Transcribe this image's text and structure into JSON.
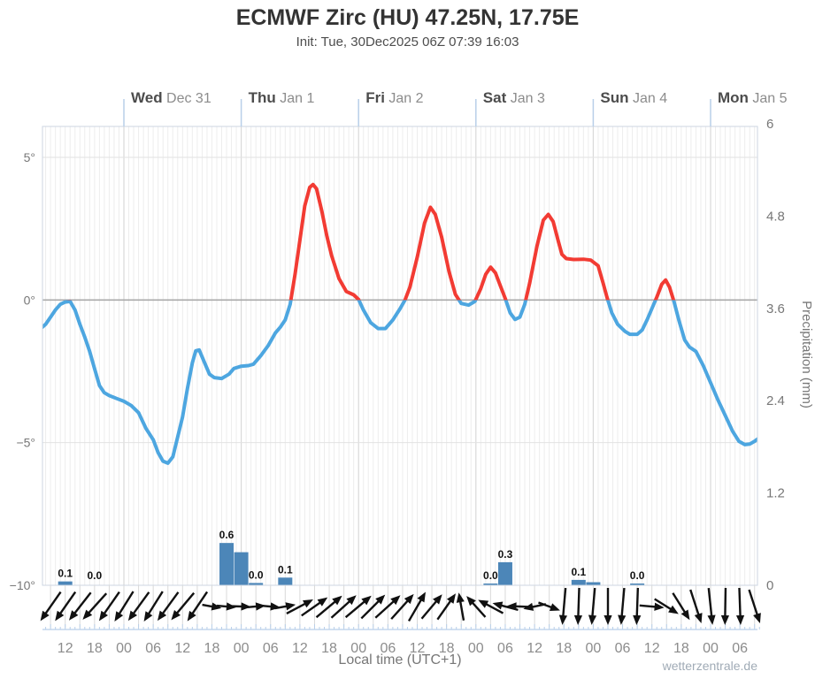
{
  "header": {
    "title": "ECMWF Zirc (HU) 47.25N, 17.75E",
    "subtitle": "Init: Tue, 30Dec2025 06Z 07:39 16:03"
  },
  "watermark": "wetterzentrale.de",
  "chart_data": {
    "type": "line",
    "title": "ECMWF Zirc (HU) 47.25N, 17.75E",
    "x_axis": {
      "label": "Local time (UTC+1)",
      "hours_range": [
        7,
        154.1
      ],
      "day_ticks": [
        {
          "t": 24,
          "day": "Wed",
          "date": "Dec 31"
        },
        {
          "t": 48,
          "day": "Thu",
          "date": "Jan 1"
        },
        {
          "t": 72,
          "day": "Fri",
          "date": "Jan 2"
        },
        {
          "t": 96,
          "day": "Sat",
          "date": "Jan 3"
        },
        {
          "t": 120,
          "day": "Sun",
          "date": "Jan 4"
        },
        {
          "t": 144,
          "day": "Mon",
          "date": "Jan 5"
        }
      ],
      "time_ticks": [
        {
          "t": 12,
          "label": "12"
        },
        {
          "t": 18,
          "label": "18"
        },
        {
          "t": 24,
          "label": "00"
        },
        {
          "t": 30,
          "label": "06"
        },
        {
          "t": 36,
          "label": "12"
        },
        {
          "t": 42,
          "label": "18"
        },
        {
          "t": 48,
          "label": "00"
        },
        {
          "t": 54,
          "label": "06"
        },
        {
          "t": 60,
          "label": "12"
        },
        {
          "t": 66,
          "label": "18"
        },
        {
          "t": 72,
          "label": "00"
        },
        {
          "t": 78,
          "label": "06"
        },
        {
          "t": 84,
          "label": "12"
        },
        {
          "t": 90,
          "label": "18"
        },
        {
          "t": 96,
          "label": "00"
        },
        {
          "t": 102,
          "label": "06"
        },
        {
          "t": 108,
          "label": "12"
        },
        {
          "t": 114,
          "label": "18"
        },
        {
          "t": 120,
          "label": "00"
        },
        {
          "t": 126,
          "label": "06"
        },
        {
          "t": 132,
          "label": "12"
        },
        {
          "t": 138,
          "label": "18"
        },
        {
          "t": 144,
          "label": "00"
        },
        {
          "t": 150,
          "label": "06"
        }
      ]
    },
    "y_left": {
      "unit": "°C",
      "range": [
        -10,
        6.2
      ],
      "ticks": [
        {
          "v": 5,
          "label": "5°"
        },
        {
          "v": 0,
          "label": "0°"
        },
        {
          "v": -5,
          "label": "−5°"
        },
        {
          "v": -10,
          "label": "−10°"
        }
      ]
    },
    "y_right": {
      "label": "Precipitation (mm)",
      "range": [
        0,
        6
      ],
      "ticks": [
        {
          "v": 0,
          "label": "0"
        },
        {
          "v": 1.2,
          "label": "1.2"
        },
        {
          "v": 2.4,
          "label": "2.4"
        },
        {
          "v": 3.6,
          "label": "3.6"
        },
        {
          "v": 4.8,
          "label": "4.8"
        },
        {
          "v": 6,
          "label": "6"
        }
      ]
    },
    "temperature": {
      "unit": "°C",
      "color_above_zero": "#f23b33",
      "color_below_zero": "#4da6e0",
      "points": [
        [
          7,
          -1.0
        ],
        [
          8,
          -0.85
        ],
        [
          9,
          -0.6
        ],
        [
          10,
          -0.35
        ],
        [
          11,
          -0.15
        ],
        [
          12,
          -0.07
        ],
        [
          13,
          -0.05
        ],
        [
          14,
          -0.35
        ],
        [
          15,
          -0.85
        ],
        [
          16,
          -1.3
        ],
        [
          17,
          -1.8
        ],
        [
          18,
          -2.4
        ],
        [
          19,
          -3.0
        ],
        [
          20,
          -3.25
        ],
        [
          21,
          -3.35
        ],
        [
          22.5,
          -3.45
        ],
        [
          24,
          -3.55
        ],
        [
          25.5,
          -3.7
        ],
        [
          27,
          -3.95
        ],
        [
          28.5,
          -4.5
        ],
        [
          30,
          -4.9
        ],
        [
          31,
          -5.35
        ],
        [
          32,
          -5.65
        ],
        [
          33,
          -5.72
        ],
        [
          34,
          -5.5
        ],
        [
          35,
          -4.8
        ],
        [
          36,
          -4.1
        ],
        [
          37,
          -3.1
        ],
        [
          38,
          -2.2
        ],
        [
          38.7,
          -1.78
        ],
        [
          39.4,
          -1.75
        ],
        [
          40.5,
          -2.2
        ],
        [
          41.5,
          -2.6
        ],
        [
          42.5,
          -2.72
        ],
        [
          44,
          -2.75
        ],
        [
          45.5,
          -2.6
        ],
        [
          46.5,
          -2.4
        ],
        [
          48,
          -2.32
        ],
        [
          49.5,
          -2.3
        ],
        [
          50.5,
          -2.25
        ],
        [
          52,
          -1.95
        ],
        [
          53.5,
          -1.6
        ],
        [
          55,
          -1.15
        ],
        [
          56,
          -0.95
        ],
        [
          57,
          -0.7
        ],
        [
          58,
          -0.15
        ],
        [
          59,
          0.9
        ],
        [
          60,
          2.1
        ],
        [
          61,
          3.3
        ],
        [
          62,
          3.95
        ],
        [
          62.7,
          4.05
        ],
        [
          63.4,
          3.9
        ],
        [
          64.5,
          3.1
        ],
        [
          65.5,
          2.25
        ],
        [
          66.5,
          1.55
        ],
        [
          68,
          0.75
        ],
        [
          69.5,
          0.3
        ],
        [
          71,
          0.18
        ],
        [
          72,
          0.02
        ],
        [
          73,
          -0.35
        ],
        [
          74.5,
          -0.8
        ],
        [
          76,
          -1.0
        ],
        [
          77.5,
          -1.0
        ],
        [
          79,
          -0.7
        ],
        [
          80.5,
          -0.3
        ],
        [
          81.5,
          0.0
        ],
        [
          82.5,
          0.45
        ],
        [
          84,
          1.5
        ],
        [
          85.5,
          2.7
        ],
        [
          86.7,
          3.25
        ],
        [
          87.7,
          3.0
        ],
        [
          89,
          2.2
        ],
        [
          90.5,
          1.0
        ],
        [
          91.8,
          0.2
        ],
        [
          93,
          -0.12
        ],
        [
          94.5,
          -0.18
        ],
        [
          95.8,
          -0.05
        ],
        [
          97,
          0.4
        ],
        [
          98,
          0.9
        ],
        [
          99,
          1.15
        ],
        [
          100,
          0.95
        ],
        [
          101,
          0.5
        ],
        [
          102,
          0.05
        ],
        [
          103,
          -0.45
        ],
        [
          104,
          -0.68
        ],
        [
          105,
          -0.6
        ],
        [
          106,
          -0.15
        ],
        [
          107,
          0.6
        ],
        [
          108.5,
          1.9
        ],
        [
          109.8,
          2.8
        ],
        [
          110.8,
          3.0
        ],
        [
          111.8,
          2.75
        ],
        [
          112.8,
          2.1
        ],
        [
          113.6,
          1.6
        ],
        [
          114.5,
          1.45
        ],
        [
          116,
          1.42
        ],
        [
          118,
          1.43
        ],
        [
          119.5,
          1.4
        ],
        [
          121,
          1.2
        ],
        [
          122,
          0.6
        ],
        [
          122.8,
          0.1
        ],
        [
          123.8,
          -0.45
        ],
        [
          125,
          -0.85
        ],
        [
          126.5,
          -1.1
        ],
        [
          127.5,
          -1.2
        ],
        [
          129,
          -1.2
        ],
        [
          130,
          -1.05
        ],
        [
          131,
          -0.7
        ],
        [
          132,
          -0.3
        ],
        [
          133,
          0.1
        ],
        [
          134,
          0.55
        ],
        [
          134.8,
          0.7
        ],
        [
          135.6,
          0.45
        ],
        [
          136.5,
          -0.05
        ],
        [
          137.5,
          -0.7
        ],
        [
          138.7,
          -1.4
        ],
        [
          139.7,
          -1.65
        ],
        [
          141,
          -1.8
        ],
        [
          142.5,
          -2.3
        ],
        [
          144,
          -2.9
        ],
        [
          145.5,
          -3.5
        ],
        [
          147,
          -4.05
        ],
        [
          148.5,
          -4.6
        ],
        [
          149.8,
          -4.95
        ],
        [
          151,
          -5.07
        ],
        [
          152,
          -5.05
        ],
        [
          153,
          -4.95
        ],
        [
          153.8,
          -4.85
        ]
      ]
    },
    "precipitation": {
      "unit": "mm",
      "bar_color": "#4c86b8",
      "bars": [
        {
          "t": 12,
          "mm": 0.05
        },
        {
          "t": 45,
          "mm": 0.55
        },
        {
          "t": 48,
          "mm": 0.43
        },
        {
          "t": 51,
          "mm": 0.03
        },
        {
          "t": 57,
          "mm": 0.1
        },
        {
          "t": 99,
          "mm": 0.02
        },
        {
          "t": 102,
          "mm": 0.3
        },
        {
          "t": 117,
          "mm": 0.07
        },
        {
          "t": 120,
          "mm": 0.04
        },
        {
          "t": 129,
          "mm": 0.02
        }
      ],
      "labels": [
        {
          "t": 12,
          "text": "0.1"
        },
        {
          "t": 18,
          "text": "0.0"
        },
        {
          "t": 45,
          "text": "0.6"
        },
        {
          "t": 51,
          "text": "0.0"
        },
        {
          "t": 57,
          "text": "0.1"
        },
        {
          "t": 99,
          "text": "0.0"
        },
        {
          "t": 102,
          "text": "0.3"
        },
        {
          "t": 117,
          "text": "0.1"
        },
        {
          "t": 129,
          "text": "0.0"
        }
      ]
    },
    "wind_arrows": [
      [
        9,
        215,
        40
      ],
      [
        12,
        215,
        40
      ],
      [
        15,
        218,
        40
      ],
      [
        18,
        222,
        40
      ],
      [
        21,
        215,
        40
      ],
      [
        24,
        212,
        40
      ],
      [
        27,
        216,
        40
      ],
      [
        30,
        212,
        40
      ],
      [
        33,
        216,
        40
      ],
      [
        36,
        220,
        40
      ],
      [
        39,
        214,
        40
      ],
      [
        42,
        100,
        22
      ],
      [
        45,
        95,
        22
      ],
      [
        48,
        92,
        22
      ],
      [
        51,
        85,
        22
      ],
      [
        54,
        95,
        22
      ],
      [
        57,
        80,
        24
      ],
      [
        60,
        62,
        34
      ],
      [
        63,
        55,
        36
      ],
      [
        66,
        50,
        38
      ],
      [
        69,
        48,
        38
      ],
      [
        72,
        50,
        38
      ],
      [
        75,
        45,
        38
      ],
      [
        78,
        48,
        38
      ],
      [
        81,
        42,
        38
      ],
      [
        84,
        30,
        38
      ],
      [
        87,
        40,
        36
      ],
      [
        90,
        35,
        36
      ],
      [
        93,
        350,
        32
      ],
      [
        96,
        318,
        32
      ],
      [
        99,
        298,
        32
      ],
      [
        102,
        285,
        30
      ],
      [
        105,
        272,
        30
      ],
      [
        108,
        258,
        26
      ],
      [
        111,
        110,
        26
      ],
      [
        114,
        185,
        42
      ],
      [
        117,
        182,
        42
      ],
      [
        120,
        185,
        42
      ],
      [
        123,
        180,
        42
      ],
      [
        126,
        185,
        42
      ],
      [
        129,
        182,
        42
      ],
      [
        132,
        95,
        28
      ],
      [
        135,
        122,
        32
      ],
      [
        138,
        148,
        36
      ],
      [
        141,
        162,
        40
      ],
      [
        144,
        174,
        42
      ],
      [
        147,
        181,
        42
      ],
      [
        150,
        178,
        42
      ],
      [
        153,
        162,
        40
      ]
    ],
    "colors": {
      "grid_hour": "#ededed",
      "grid_day": "#d9d9d9",
      "grid_temp": "#e2e2e2",
      "zero_line": "#a9a9a9",
      "plot_border": "#ccd6e2",
      "blue_tick": "#b9cfe9",
      "arrow": "#111111",
      "label_dark": "#4c4c4c",
      "label_gray": "#8c8c8c",
      "axis_text": "#777777",
      "bar_label": "#111111",
      "watermark_text": "#a0abb6"
    }
  }
}
